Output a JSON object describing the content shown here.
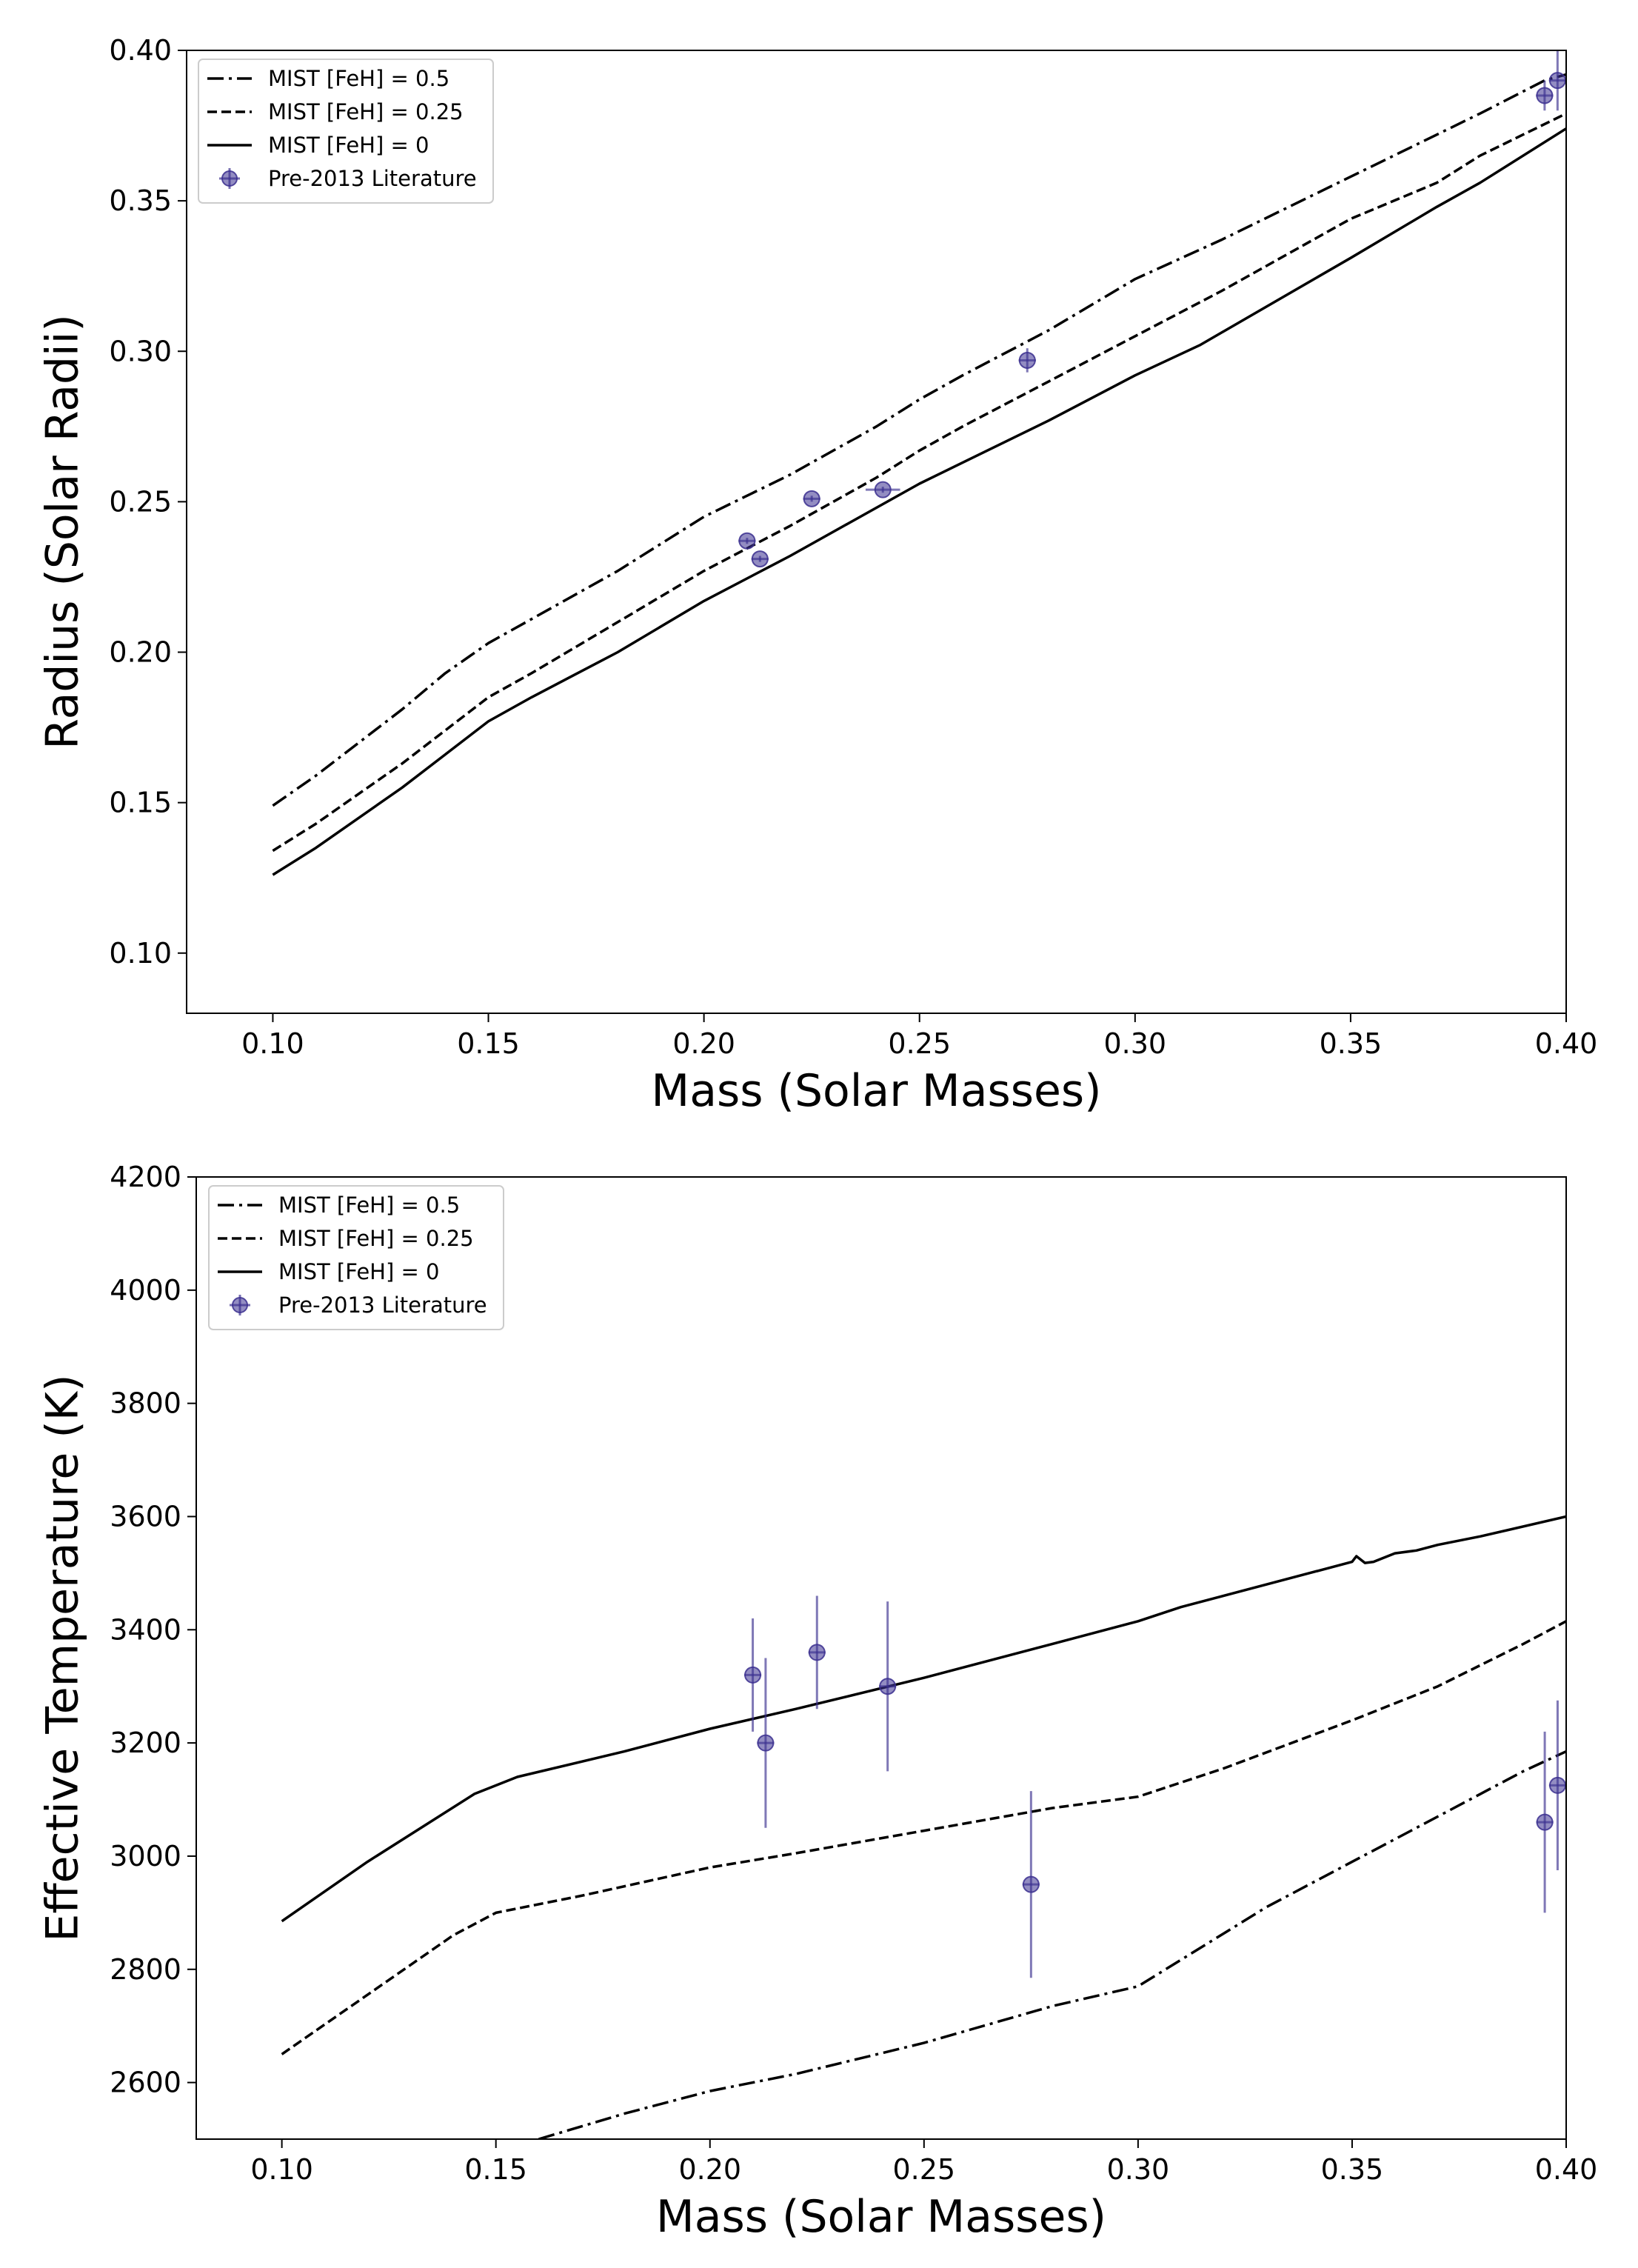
{
  "chart_data": [
    {
      "type": "line",
      "xlabel": "Mass (Solar Masses)",
      "ylabel": "Radius (Solar Radii)",
      "xlim": [
        0.08,
        0.4
      ],
      "ylim": [
        0.08,
        0.4
      ],
      "xticks": [
        0.1,
        0.15,
        0.2,
        0.25,
        0.3,
        0.35,
        0.4
      ],
      "yticks": [
        0.1,
        0.15,
        0.2,
        0.25,
        0.3,
        0.35,
        0.4
      ],
      "xtick_labels": [
        "0.10",
        "0.15",
        "0.20",
        "0.25",
        "0.30",
        "0.35",
        "0.40"
      ],
      "ytick_labels": [
        "0.10",
        "0.15",
        "0.20",
        "0.25",
        "0.30",
        "0.35",
        "0.40"
      ],
      "legend_position": "top-left",
      "series": [
        {
          "name": "MIST [FeH] = 0.5",
          "style": "dashdot",
          "color": "#000000",
          "x": [
            0.1,
            0.11,
            0.12,
            0.13,
            0.14,
            0.15,
            0.16,
            0.18,
            0.2,
            0.22,
            0.24,
            0.25,
            0.26,
            0.28,
            0.3,
            0.32,
            0.35,
            0.38,
            0.395,
            0.4
          ],
          "y": [
            0.149,
            0.159,
            0.17,
            0.181,
            0.193,
            0.203,
            0.211,
            0.227,
            0.245,
            0.259,
            0.275,
            0.284,
            0.292,
            0.307,
            0.324,
            0.337,
            0.358,
            0.379,
            0.39,
            0.392
          ]
        },
        {
          "name": "MIST [FeH] = 0.25",
          "style": "dashed",
          "color": "#000000",
          "x": [
            0.1,
            0.11,
            0.12,
            0.13,
            0.14,
            0.15,
            0.16,
            0.18,
            0.2,
            0.22,
            0.24,
            0.25,
            0.26,
            0.28,
            0.3,
            0.32,
            0.35,
            0.37,
            0.38,
            0.4
          ],
          "y": [
            0.134,
            0.143,
            0.153,
            0.163,
            0.174,
            0.185,
            0.193,
            0.21,
            0.227,
            0.242,
            0.258,
            0.267,
            0.275,
            0.29,
            0.305,
            0.32,
            0.344,
            0.356,
            0.365,
            0.379
          ]
        },
        {
          "name": "MIST [FeH] = 0",
          "style": "solid",
          "color": "#000000",
          "x": [
            0.1,
            0.11,
            0.12,
            0.13,
            0.14,
            0.15,
            0.16,
            0.18,
            0.2,
            0.22,
            0.24,
            0.25,
            0.26,
            0.28,
            0.3,
            0.315,
            0.35,
            0.37,
            0.38,
            0.4
          ],
          "y": [
            0.126,
            0.135,
            0.145,
            0.155,
            0.166,
            0.177,
            0.185,
            0.2,
            0.217,
            0.232,
            0.248,
            0.256,
            0.263,
            0.277,
            0.292,
            0.302,
            0.331,
            0.348,
            0.356,
            0.374
          ]
        }
      ],
      "points": {
        "name": "Pre-2013 Literature",
        "color": "#3b2f8f",
        "x": [
          0.21,
          0.213,
          0.225,
          0.2415,
          0.275,
          0.395,
          0.398
        ],
        "y": [
          0.237,
          0.231,
          0.251,
          0.254,
          0.297,
          0.385,
          0.39
        ],
        "xerr": [
          0.002,
          0.002,
          0.002,
          0.004,
          0.002,
          0.002,
          0.002
        ],
        "yerr": [
          0.001,
          0.001,
          0.001,
          0.001,
          0.004,
          0.005,
          0.01
        ]
      }
    },
    {
      "type": "line",
      "xlabel": "Mass (Solar Masses)",
      "ylabel": "Effective Temperature (K)",
      "xlim": [
        0.08,
        0.4
      ],
      "ylim": [
        2500,
        4200
      ],
      "xticks": [
        0.1,
        0.15,
        0.2,
        0.25,
        0.3,
        0.35,
        0.4
      ],
      "yticks": [
        2600,
        2800,
        3000,
        3200,
        3400,
        3600,
        3800,
        4000,
        4200
      ],
      "xtick_labels": [
        "0.10",
        "0.15",
        "0.20",
        "0.25",
        "0.30",
        "0.35",
        "0.40"
      ],
      "ytick_labels": [
        "2600",
        "2800",
        "3000",
        "3200",
        "3400",
        "3600",
        "3800",
        "4000",
        "4200"
      ],
      "legend_position": "top-left",
      "series": [
        {
          "name": "MIST [FeH] = 0.5",
          "style": "dashdot",
          "color": "#000000",
          "x": [
            0.16,
            0.18,
            0.2,
            0.22,
            0.25,
            0.28,
            0.3,
            0.33,
            0.35,
            0.37,
            0.39,
            0.4
          ],
          "y": [
            2500,
            2545,
            2585,
            2615,
            2670,
            2735,
            2770,
            2910,
            2990,
            3070,
            3150,
            3185
          ]
        },
        {
          "name": "MIST [FeH] = 0.25",
          "style": "dashed",
          "color": "#000000",
          "x": [
            0.1,
            0.12,
            0.14,
            0.15,
            0.17,
            0.2,
            0.22,
            0.25,
            0.28,
            0.3,
            0.32,
            0.35,
            0.37,
            0.39,
            0.4
          ],
          "y": [
            2650,
            2755,
            2860,
            2900,
            2930,
            2980,
            3005,
            3045,
            3085,
            3105,
            3155,
            3240,
            3300,
            3375,
            3415
          ]
        },
        {
          "name": "MIST [FeH] = 0",
          "style": "solid",
          "color": "#000000",
          "x": [
            0.1,
            0.12,
            0.145,
            0.155,
            0.18,
            0.2,
            0.22,
            0.25,
            0.28,
            0.3,
            0.31,
            0.35,
            0.351,
            0.353,
            0.355,
            0.36,
            0.365,
            0.37,
            0.38,
            0.4
          ],
          "y": [
            2885,
            2990,
            3110,
            3140,
            3185,
            3225,
            3260,
            3315,
            3375,
            3415,
            3440,
            3520,
            3530,
            3518,
            3520,
            3535,
            3540,
            3550,
            3565,
            3600
          ]
        }
      ],
      "points": {
        "name": "Pre-2013 Literature",
        "color": "#3b2f8f",
        "x": [
          0.21,
          0.213,
          0.225,
          0.2415,
          0.275,
          0.395,
          0.398
        ],
        "y": [
          3320,
          3200,
          3360,
          3300,
          2950,
          3060,
          3125
        ],
        "xerr": [
          0.002,
          0.002,
          0.002,
          0.002,
          0.002,
          0.002,
          0.002
        ],
        "yerr": [
          100,
          150,
          100,
          150,
          165,
          160,
          150
        ]
      }
    }
  ]
}
